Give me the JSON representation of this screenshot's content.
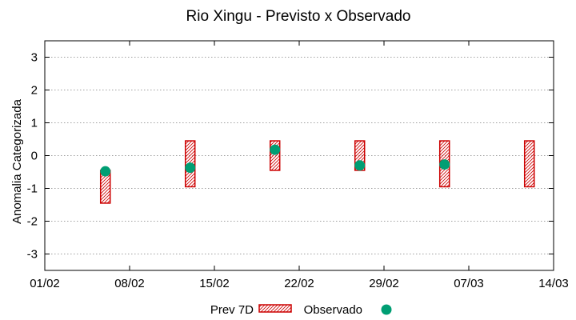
{
  "chart_data": {
    "type": "interval",
    "title": "Rio Xingu - Previsto x Observado",
    "xlabel": "",
    "ylabel": "Anomalia Categorizada",
    "x_ticks": [
      "01/02",
      "08/02",
      "15/02",
      "22/02",
      "29/02",
      "07/03",
      "14/03"
    ],
    "xlim": [
      "01/02",
      "14/03"
    ],
    "ylim": [
      -3.5,
      3.5
    ],
    "y_ticks": [
      -3,
      -2,
      -1,
      0,
      1,
      2,
      3
    ],
    "grid": "horizontal dotted",
    "legend_position": "bottom",
    "series": [
      {
        "name": "Prev 7D",
        "kind": "range-bars",
        "color": "#cc0000",
        "points": [
          {
            "x": "06/02",
            "low": -1.45,
            "high": -0.45
          },
          {
            "x": "13/02",
            "low": -0.95,
            "high": 0.45
          },
          {
            "x": "20/02",
            "low": -0.45,
            "high": 0.45
          },
          {
            "x": "27/02",
            "low": -0.45,
            "high": 0.45
          },
          {
            "x": "05/03",
            "low": -0.95,
            "high": 0.45
          },
          {
            "x": "12/03",
            "low": -0.95,
            "high": 0.45
          }
        ]
      },
      {
        "name": "Observado",
        "kind": "points",
        "color": "#009e73",
        "points": [
          {
            "x": "06/02",
            "y": -0.48
          },
          {
            "x": "13/02",
            "y": -0.37
          },
          {
            "x": "20/02",
            "y": 0.18
          },
          {
            "x": "27/02",
            "y": -0.3
          },
          {
            "x": "05/03",
            "y": -0.27
          }
        ]
      }
    ]
  }
}
